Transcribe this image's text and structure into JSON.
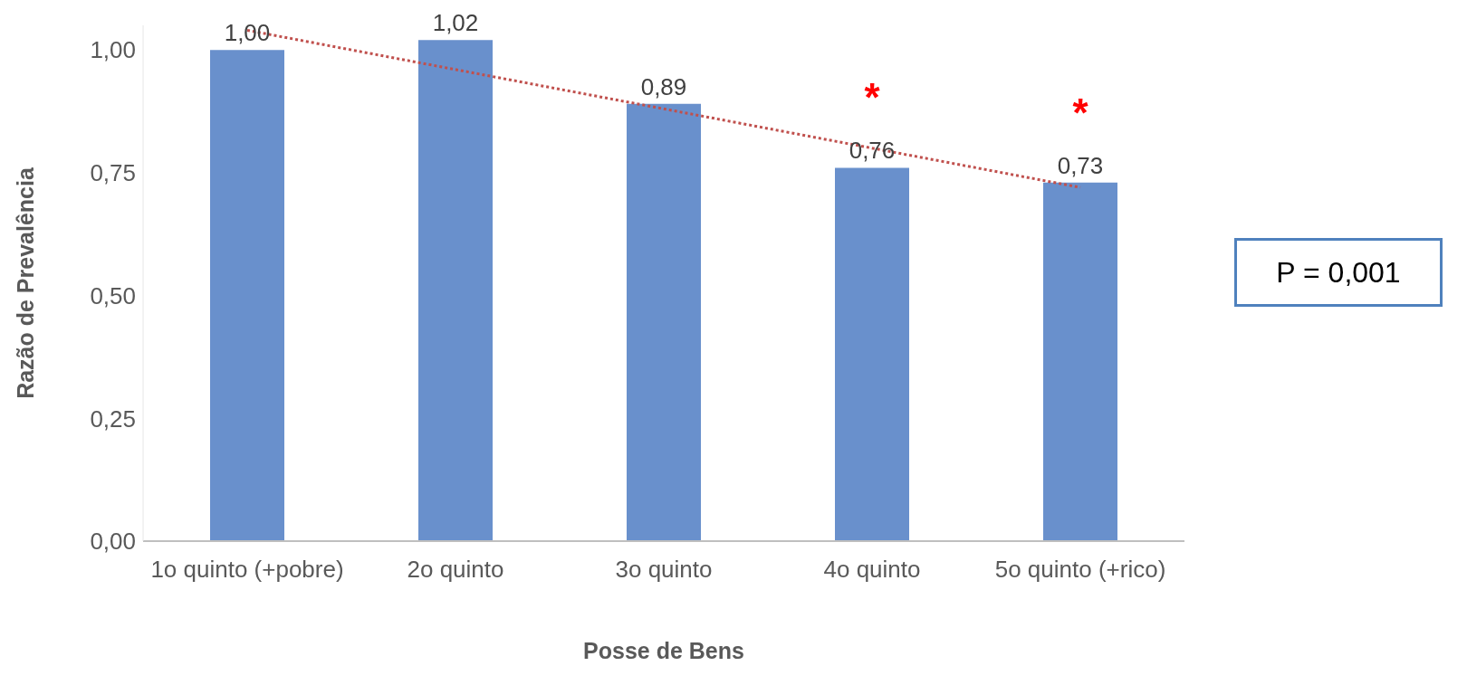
{
  "chart_data": {
    "type": "bar",
    "xlabel": "Posse de Bens",
    "ylabel": "Razão de Prevalência",
    "categories": [
      "1o quinto (+pobre)",
      "2o quinto",
      "3o quinto",
      "4o quinto",
      "5o quinto (+rico)"
    ],
    "series": [
      {
        "color": "#6990cc",
        "values": [
          1.0,
          1.02,
          0.89,
          0.76,
          0.73
        ],
        "value_labels": [
          "1,00",
          "1,02",
          "0,89",
          "0,76",
          "0,73"
        ]
      },
      {
        "type": "line",
        "color": "#c0504d",
        "line_style": "dotted",
        "x": [
          "1o quinto (+pobre)",
          "5o quinto (+rico)"
        ],
        "values": [
          1.04,
          0.72
        ]
      }
    ],
    "ylim": [
      0,
      1.05
    ],
    "yticks": [
      {
        "value": 0,
        "label": "0,00"
      },
      {
        "value": 0.25,
        "label": "0,25"
      },
      {
        "value": 0.5,
        "label": "0,50"
      },
      {
        "value": 0.75,
        "label": "0,75"
      },
      {
        "value": 1,
        "label": "1,00"
      }
    ],
    "annotations": [
      {
        "text": "*",
        "x": "4o quinto",
        "y": 0.76
      },
      {
        "text": "*",
        "x": "5o quinto (+rico)",
        "y": 0.73
      },
      "P = 0,001"
    ]
  }
}
